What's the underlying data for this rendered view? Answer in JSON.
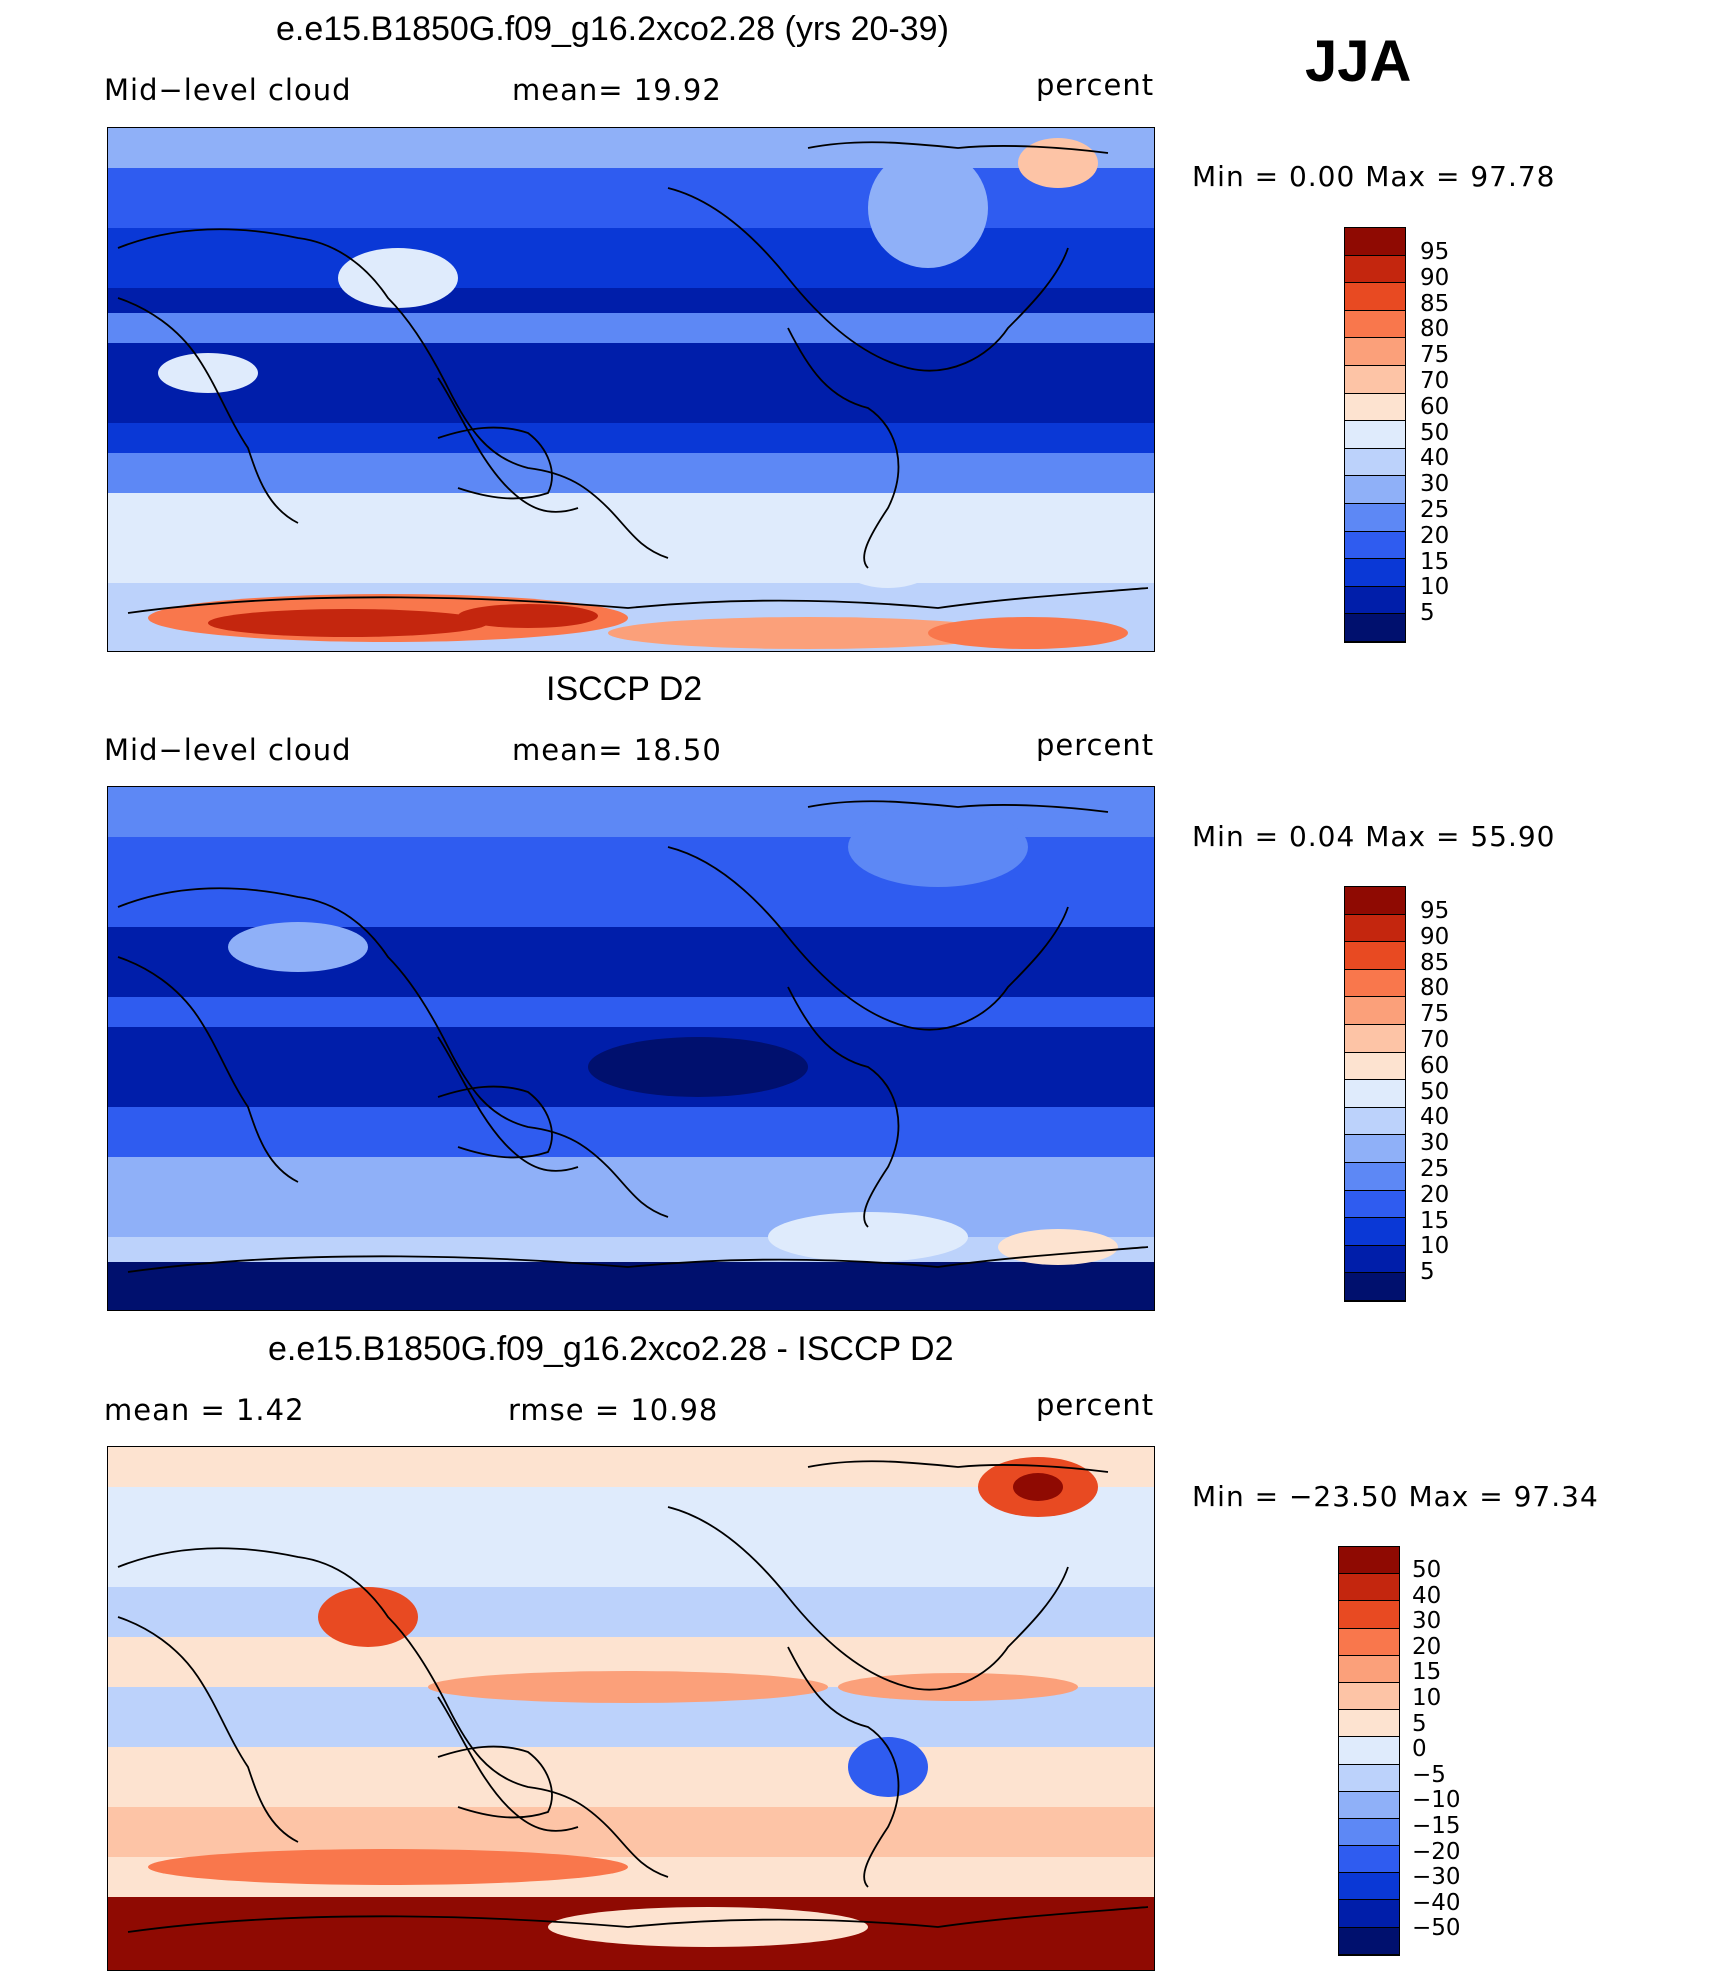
{
  "season": "JJA",
  "colors": {
    "bg_ocean": "#0a2bb8",
    "land_line": "#000000",
    "cloud_scale": [
      "#00106e",
      "#001eaa",
      "#0a38d6",
      "#2f5cf0",
      "#5d88f5",
      "#8fb0f8",
      "#bcd2fb",
      "#dfebfc",
      "#fde3d0",
      "#fdc4a6",
      "#fba07a",
      "#f9774c",
      "#e84a22",
      "#c4260e",
      "#8f0a02"
    ],
    "diff_scale": [
      "#00106e",
      "#001eaa",
      "#0a38d6",
      "#2f5cf0",
      "#5d88f5",
      "#8fb0f8",
      "#bcd2fb",
      "#dfebfc",
      "#fde3d0",
      "#fdc4a6",
      "#fba07a",
      "#f9774c",
      "#e84a22",
      "#c4260e",
      "#8f0a02"
    ]
  },
  "panels": [
    {
      "title": "e.e15.B1850G.f09_g16.2xco2.28 (yrs 20-39)",
      "left_label": "Mid−level  cloud",
      "center_label": "mean=   19.92",
      "right_label": "percent",
      "minmax": "Min  =      0.00  Max  =    97.78",
      "colorbar": [
        "95",
        "90",
        "85",
        "80",
        "75",
        "70",
        "60",
        "50",
        "40",
        "30",
        "25",
        "20",
        "15",
        "10",
        "5"
      ]
    },
    {
      "title": "ISCCP D2",
      "left_label": "Mid−level  cloud",
      "center_label": "mean=   18.50",
      "right_label": "percent",
      "minmax": "Min  =      0.04  Max  =    55.90",
      "colorbar": [
        "95",
        "90",
        "85",
        "80",
        "75",
        "70",
        "60",
        "50",
        "40",
        "30",
        "25",
        "20",
        "15",
        "10",
        "5"
      ]
    },
    {
      "title": "e.e15.B1850G.f09_g16.2xco2.28 - ISCCP D2",
      "left_label": "mean  =     1.42",
      "center_label": "rmse  =    10.98",
      "right_label": "percent",
      "minmax": "Min  = −23.50  Max  =    97.34",
      "colorbar": [
        "50",
        "40",
        "30",
        "20",
        "15",
        "10",
        "5",
        "0",
        "−5",
        "−10",
        "−15",
        "−20",
        "−30",
        "−40",
        "−50"
      ]
    }
  ]
}
